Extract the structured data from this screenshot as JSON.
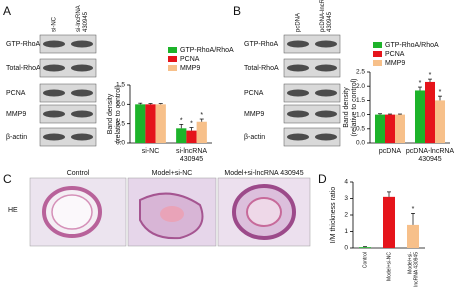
{
  "panels": {
    "A": {
      "label": "A",
      "columns": [
        [
          "si-NC"
        ],
        [
          "si-lncRNA",
          "430945"
        ]
      ],
      "rows": [
        "GTP-RhoA",
        "Total-RhoA",
        "PCNA",
        "MMP9",
        "β-actin"
      ]
    },
    "B": {
      "label": "B",
      "columns": [
        [
          "pcDNA"
        ],
        [
          "pcDNA-lncRNA",
          "430945"
        ]
      ],
      "rows": [
        "GTP-RhoA",
        "Total-RhoA",
        "PCNA",
        "MMP9",
        "β-actin"
      ]
    },
    "C": {
      "label": "C",
      "stain": "HE",
      "images": [
        "Control",
        "Model+si-NC",
        "Model+si-lncRNA 430945"
      ]
    },
    "D": {
      "label": "D"
    }
  },
  "chart_data": [
    {
      "type": "bar",
      "ylabel": [
        "Band density",
        "(relative to control)"
      ],
      "categories": [
        [
          "si-NC"
        ],
        [
          "si-lncRNA",
          "430945"
        ]
      ],
      "series": [
        {
          "name": "GTP-RhoA/RhoA",
          "color": "#1db32a",
          "values": [
            1.0,
            0.38
          ],
          "errors": [
            0.03,
            0.1
          ],
          "markers": [
            null,
            "*"
          ]
        },
        {
          "name": "PCNA",
          "color": "#e5141b",
          "values": [
            1.0,
            0.32
          ],
          "errors": [
            0.02,
            0.08
          ],
          "markers": [
            null,
            "*"
          ]
        },
        {
          "name": "MMP9",
          "color": "#f7c08a",
          "values": [
            1.0,
            0.55
          ],
          "errors": [
            0.02,
            0.07
          ],
          "markers": [
            null,
            "*"
          ]
        }
      ],
      "ylim": [
        0,
        1.5
      ],
      "yticks": [
        {
          "value": 0,
          "label": "0.0"
        },
        0.5,
        {
          "value": 1,
          "label": "1.0"
        },
        1.5
      ]
    },
    {
      "type": "bar",
      "ylabel": [
        "Band density",
        "(relative to control)"
      ],
      "categories": [
        [
          "pcDNA"
        ],
        [
          "pcDNA-lncRNA",
          "430945"
        ]
      ],
      "series": [
        {
          "name": "GTP-RhoA/RhoA",
          "color": "#1db32a",
          "values": [
            1.0,
            1.85
          ],
          "errors": [
            0.03,
            0.12
          ],
          "markers": [
            null,
            "*"
          ]
        },
        {
          "name": "PCNA",
          "color": "#e5141b",
          "values": [
            1.0,
            2.15
          ],
          "errors": [
            0.02,
            0.1
          ],
          "markers": [
            null,
            "*"
          ]
        },
        {
          "name": "MMP9",
          "color": "#f7c08a",
          "values": [
            1.0,
            1.5
          ],
          "errors": [
            0.02,
            0.15
          ],
          "markers": [
            null,
            "*"
          ]
        }
      ],
      "ylim": [
        0,
        2.5
      ],
      "yticks": [
        {
          "value": 0,
          "label": "0.0"
        },
        0.5,
        {
          "value": 1,
          "label": "1.0"
        },
        1.5,
        {
          "value": 2,
          "label": "2.0"
        },
        2.5
      ]
    },
    {
      "type": "bar",
      "ylabel": [
        "I/M thickness ratio"
      ],
      "categories": [
        [
          "Control"
        ],
        [
          "Model+si-NC"
        ],
        [
          "Model+si-",
          "lncRNA 430945"
        ]
      ],
      "values": [
        0.05,
        3.1,
        1.4
      ],
      "errors": [
        0.03,
        0.3,
        0.7
      ],
      "markers": [
        null,
        null,
        "*"
      ],
      "colors": [
        "#1db32a",
        "#e5141b",
        "#f7c08a"
      ],
      "ylim": [
        0,
        4
      ],
      "yticks": [
        0,
        1,
        2,
        3,
        4
      ]
    }
  ]
}
